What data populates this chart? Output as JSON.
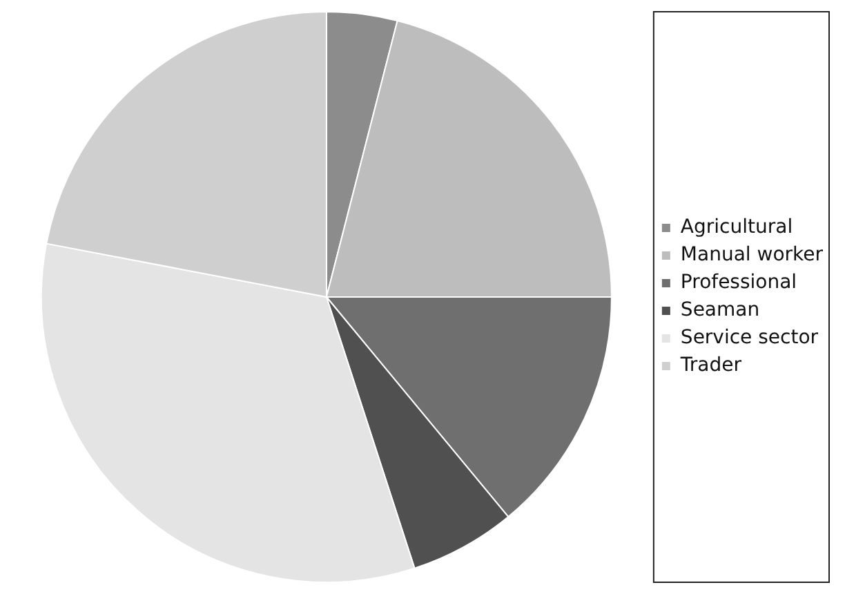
{
  "chart_data": {
    "type": "pie",
    "categories": [
      "Agricultural",
      "Manual worker",
      "Professional",
      "Seaman",
      "Service sector",
      "Trader"
    ],
    "values": [
      4,
      21,
      14,
      6,
      33,
      22
    ],
    "colors": [
      "#8c8c8c",
      "#bdbdbd",
      "#6f6f6f",
      "#505050",
      "#e4e4e4",
      "#cfcfcf"
    ],
    "legend": "right"
  }
}
